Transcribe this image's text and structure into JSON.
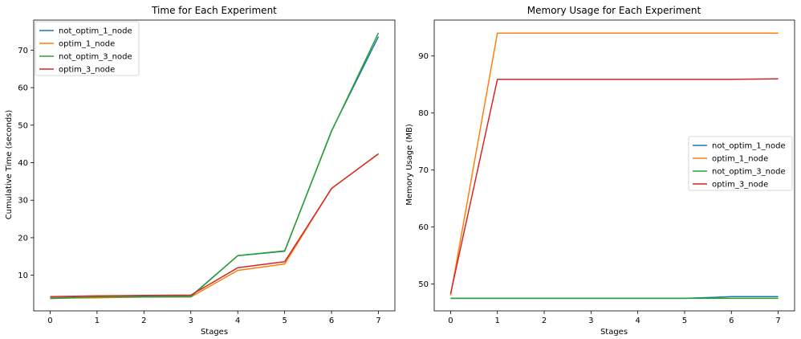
{
  "chart_data": [
    {
      "type": "line",
      "title": "Time for Each Experiment",
      "xlabel": "Stages",
      "ylabel": "Cumulative Time (seconds)",
      "x": [
        0,
        1,
        2,
        3,
        4,
        5,
        6,
        7
      ],
      "xlim": [
        -0.35,
        7.35
      ],
      "ylim": [
        0.5,
        78
      ],
      "xticks": [
        0,
        1,
        2,
        3,
        4,
        5,
        6,
        7
      ],
      "yticks": [
        10,
        20,
        30,
        40,
        50,
        60,
        70
      ],
      "legend": "top-left",
      "grid": false,
      "series": [
        {
          "name": "not_optim_1_node",
          "color": "#1f77b4",
          "values": [
            4.0,
            4.2,
            4.3,
            4.4,
            15.2,
            16.4,
            48.5,
            73.6
          ]
        },
        {
          "name": "optim_1_node",
          "color": "#ff7f0e",
          "values": [
            3.9,
            4.0,
            4.2,
            4.2,
            11.3,
            13.0,
            33.2,
            42.3
          ]
        },
        {
          "name": "not_optim_3_node",
          "color": "#2ca02c",
          "values": [
            3.8,
            4.2,
            4.2,
            4.3,
            15.2,
            16.5,
            48.4,
            74.6
          ]
        },
        {
          "name": "optim_3_node",
          "color": "#d62728",
          "values": [
            4.3,
            4.5,
            4.6,
            4.7,
            12.0,
            13.6,
            33.1,
            42.4
          ]
        }
      ]
    },
    {
      "type": "line",
      "title": "Memory Usage for Each Experiment",
      "xlabel": "Stages",
      "ylabel": "Memory Usage (MB)",
      "x": [
        0,
        1,
        2,
        3,
        4,
        5,
        6,
        7
      ],
      "xlim": [
        -0.35,
        7.35
      ],
      "ylim": [
        45.3,
        96.3
      ],
      "xticks": [
        0,
        1,
        2,
        3,
        4,
        5,
        6,
        7
      ],
      "yticks": [
        50,
        60,
        70,
        80,
        90
      ],
      "legend": "center-right",
      "grid": false,
      "series": [
        {
          "name": "not_optim_1_node",
          "color": "#1f77b4",
          "values": [
            47.5,
            47.5,
            47.5,
            47.5,
            47.5,
            47.5,
            47.8,
            47.8
          ]
        },
        {
          "name": "optim_1_node",
          "color": "#ff7f0e",
          "values": [
            48.0,
            94.0,
            94.0,
            94.0,
            94.0,
            94.0,
            94.0,
            94.0
          ]
        },
        {
          "name": "not_optim_3_node",
          "color": "#2ca02c",
          "values": [
            47.5,
            47.5,
            47.5,
            47.5,
            47.5,
            47.5,
            47.5,
            47.5
          ]
        },
        {
          "name": "optim_3_node",
          "color": "#d62728",
          "values": [
            48.3,
            85.9,
            85.9,
            85.9,
            85.9,
            85.9,
            85.9,
            86.0
          ]
        }
      ]
    }
  ]
}
